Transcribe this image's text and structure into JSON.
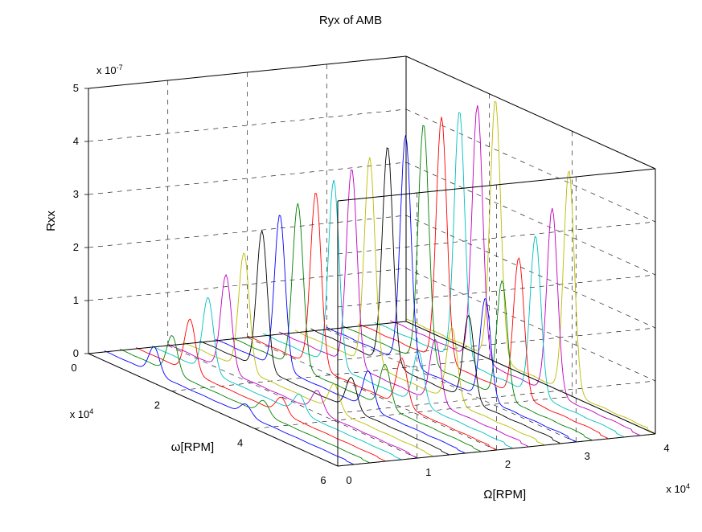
{
  "chart": {
    "type": "3d-line-waterfall",
    "title": "Ryx of AMB",
    "title_fontsize": 15,
    "background_color": "#ffffff",
    "axis_font": "Arial",
    "tick_fontsize": 13,
    "label_fontsize": 15,
    "axis_color": "#000000",
    "grid_color": "#000000",
    "grid_dash": "6,6",
    "grid_width": 0.6,
    "data_line_width": 0.9,
    "series_colors": [
      "#0000ff",
      "#008000",
      "#ff0000",
      "#00bfbf",
      "#c000c0",
      "#bdbb00",
      "#000000",
      "#0000ff",
      "#008000",
      "#ff0000",
      "#00bfbf",
      "#c000c0",
      "#bdbb00",
      "#000000",
      "#0000ff",
      "#008000",
      "#ff0000",
      "#00bfbf",
      "#c000c0",
      "#bdbb00"
    ],
    "x_axis": {
      "label": "ω[RPM]",
      "unit_label": "x 10",
      "unit_exp": "4",
      "min": 0,
      "max": 60000,
      "ticks": [
        0,
        2,
        4,
        6
      ],
      "tick_labels": [
        "0",
        "2",
        "4",
        "6"
      ]
    },
    "y_axis": {
      "label": "Ω[RPM]",
      "unit_label": "x 10",
      "unit_exp": "4",
      "min": 0,
      "max": 40000,
      "ticks": [
        0,
        1,
        2,
        3,
        4
      ],
      "tick_labels": [
        "0",
        "1",
        "2",
        "3",
        "4"
      ]
    },
    "z_axis": {
      "label": "Rxx",
      "unit_label": "x 10",
      "unit_exp": "-7",
      "min": 0,
      "max": 5e-07,
      "ticks": [
        0,
        1,
        2,
        3,
        4,
        5
      ],
      "tick_labels": [
        "0",
        "1",
        "2",
        "3",
        "4",
        "5"
      ]
    },
    "projection": {
      "origin_screen": [
        110,
        440
      ],
      "x_vec": [
        310,
        140
      ],
      "y_vec": [
        395,
        -40
      ],
      "z_vec": [
        0,
        -330
      ]
    },
    "series": [
      {
        "Omega_rpm": 2000,
        "peaks": [
          {
            "omega_rpm": 12000,
            "Rxx": 5e-08
          },
          {
            "omega_rpm": 34000,
            "Rxx": 2e-08
          }
        ],
        "base": 2e-09
      },
      {
        "Omega_rpm": 4000,
        "peaks": [
          {
            "omega_rpm": 12500,
            "Rxx": 7e-08
          },
          {
            "omega_rpm": 34500,
            "Rxx": 2.5e-08
          }
        ],
        "base": 2e-09
      },
      {
        "Omega_rpm": 6000,
        "peaks": [
          {
            "omega_rpm": 13000,
            "Rxx": 1e-07
          },
          {
            "omega_rpm": 35000,
            "Rxx": 3e-08
          }
        ],
        "base": 2e-09
      },
      {
        "Omega_rpm": 8000,
        "peaks": [
          {
            "omega_rpm": 13500,
            "Rxx": 1.4e-07
          },
          {
            "omega_rpm": 35500,
            "Rxx": 3.5e-08
          }
        ],
        "base": 2e-09
      },
      {
        "Omega_rpm": 10000,
        "peaks": [
          {
            "omega_rpm": 14000,
            "Rxx": 1.8e-07
          },
          {
            "omega_rpm": 36000,
            "Rxx": 4e-08
          }
        ],
        "base": 3e-09
      },
      {
        "Omega_rpm": 12000,
        "peaks": [
          {
            "omega_rpm": 14500,
            "Rxx": 2.2e-07
          },
          {
            "omega_rpm": 36200,
            "Rxx": 5e-08
          }
        ],
        "base": 3e-09
      },
      {
        "Omega_rpm": 14000,
        "peaks": [
          {
            "omega_rpm": 15000,
            "Rxx": 2.6e-07
          },
          {
            "omega_rpm": 36500,
            "Rxx": 6e-08
          }
        ],
        "base": 3e-09
      },
      {
        "Omega_rpm": 16000,
        "peaks": [
          {
            "omega_rpm": 15500,
            "Rxx": 2.9e-07
          },
          {
            "omega_rpm": 36800,
            "Rxx": 7e-08
          }
        ],
        "base": 3e-09
      },
      {
        "Omega_rpm": 18000,
        "peaks": [
          {
            "omega_rpm": 16000,
            "Rxx": 3.1e-07
          },
          {
            "omega_rpm": 37000,
            "Rxx": 8e-08
          }
        ],
        "base": 3e-09
      },
      {
        "Omega_rpm": 20000,
        "peaks": [
          {
            "omega_rpm": 16500,
            "Rxx": 3.3e-07
          },
          {
            "omega_rpm": 37200,
            "Rxx": 9e-08
          }
        ],
        "base": 3e-09
      },
      {
        "Omega_rpm": 22000,
        "peaks": [
          {
            "omega_rpm": 17000,
            "Rxx": 3.5e-07
          },
          {
            "omega_rpm": 37400,
            "Rxx": 1e-07
          }
        ],
        "base": 4e-09
      },
      {
        "Omega_rpm": 24000,
        "peaks": [
          {
            "omega_rpm": 17500,
            "Rxx": 3.7e-07
          },
          {
            "omega_rpm": 37600,
            "Rxx": 1.2e-07
          }
        ],
        "base": 4e-09
      },
      {
        "Omega_rpm": 26000,
        "peaks": [
          {
            "omega_rpm": 18000,
            "Rxx": 3.9e-07
          },
          {
            "omega_rpm": 37800,
            "Rxx": 1.4e-07
          }
        ],
        "base": 4e-09
      },
      {
        "Omega_rpm": 28000,
        "peaks": [
          {
            "omega_rpm": 18500,
            "Rxx": 4.1e-07
          },
          {
            "omega_rpm": 38000,
            "Rxx": 1.6e-07
          }
        ],
        "base": 4e-09
      },
      {
        "Omega_rpm": 30000,
        "peaks": [
          {
            "omega_rpm": 19000,
            "Rxx": 4.3e-07
          },
          {
            "omega_rpm": 38200,
            "Rxx": 1.9e-07
          }
        ],
        "base": 4e-09
      },
      {
        "Omega_rpm": 32000,
        "peaks": [
          {
            "omega_rpm": 19500,
            "Rxx": 4.5e-07
          },
          {
            "omega_rpm": 38400,
            "Rxx": 2.2e-07
          }
        ],
        "base": 4e-09
      },
      {
        "Omega_rpm": 34000,
        "peaks": [
          {
            "omega_rpm": 20000,
            "Rxx": 4.6e-07
          },
          {
            "omega_rpm": 38600,
            "Rxx": 2.6e-07
          }
        ],
        "base": 5e-09
      },
      {
        "Omega_rpm": 36000,
        "peaks": [
          {
            "omega_rpm": 20500,
            "Rxx": 4.7e-07
          },
          {
            "omega_rpm": 38800,
            "Rxx": 3e-07
          }
        ],
        "base": 5e-09
      },
      {
        "Omega_rpm": 38000,
        "peaks": [
          {
            "omega_rpm": 21000,
            "Rxx": 4.8e-07
          },
          {
            "omega_rpm": 39000,
            "Rxx": 3.5e-07
          }
        ],
        "base": 5e-09
      },
      {
        "Omega_rpm": 40000,
        "peaks": [
          {
            "omega_rpm": 21500,
            "Rxx": 4.9e-07
          },
          {
            "omega_rpm": 39200,
            "Rxx": 4.2e-07
          }
        ],
        "base": 5e-09
      }
    ],
    "curve_sigma_rpm": 1800,
    "curve_samples": 180
  }
}
